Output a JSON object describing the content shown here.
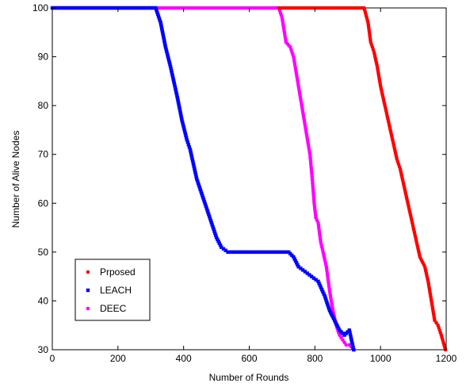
{
  "chart_data": {
    "type": "scatter",
    "title": "",
    "xlabel": "Number of Rounds",
    "ylabel": "Number of Alive Nodes",
    "xlim": [
      0,
      1200
    ],
    "ylim": [
      30,
      100
    ],
    "xticks": [
      0,
      200,
      400,
      600,
      800,
      1000,
      1200
    ],
    "yticks": [
      30,
      40,
      50,
      60,
      70,
      80,
      90,
      100
    ],
    "grid": false,
    "legend": "bottom-left",
    "series": [
      {
        "name": "Prposed",
        "color": "#ff0000",
        "marker": "circle",
        "points": [
          [
            690,
            100
          ],
          [
            950,
            100
          ],
          [
            962,
            97
          ],
          [
            970,
            93
          ],
          [
            980,
            91
          ],
          [
            990,
            88
          ],
          [
            1000,
            84
          ],
          [
            1010,
            81
          ],
          [
            1020,
            78
          ],
          [
            1030,
            75
          ],
          [
            1040,
            72
          ],
          [
            1050,
            69
          ],
          [
            1060,
            67
          ],
          [
            1070,
            64
          ],
          [
            1080,
            61
          ],
          [
            1090,
            58
          ],
          [
            1100,
            55
          ],
          [
            1110,
            52
          ],
          [
            1120,
            49
          ],
          [
            1135,
            47
          ],
          [
            1145,
            44
          ],
          [
            1155,
            40
          ],
          [
            1165,
            36
          ],
          [
            1175,
            35
          ],
          [
            1185,
            33
          ],
          [
            1198,
            30
          ]
        ]
      },
      {
        "name": "LEACH",
        "color": "#0000ff",
        "marker": "square",
        "points": [
          [
            0,
            100
          ],
          [
            315,
            100
          ],
          [
            330,
            97
          ],
          [
            345,
            92
          ],
          [
            360,
            88
          ],
          [
            380,
            82
          ],
          [
            395,
            77
          ],
          [
            410,
            73
          ],
          [
            420,
            71
          ],
          [
            430,
            68
          ],
          [
            440,
            65
          ],
          [
            455,
            62
          ],
          [
            470,
            59
          ],
          [
            485,
            56
          ],
          [
            500,
            53
          ],
          [
            515,
            51
          ],
          [
            535,
            50
          ],
          [
            600,
            50
          ],
          [
            660,
            50
          ],
          [
            720,
            50
          ],
          [
            735,
            49
          ],
          [
            750,
            47
          ],
          [
            770,
            46
          ],
          [
            790,
            45
          ],
          [
            810,
            44
          ],
          [
            830,
            41
          ],
          [
            845,
            38
          ],
          [
            860,
            36
          ],
          [
            875,
            34
          ],
          [
            890,
            33
          ],
          [
            905,
            34
          ],
          [
            918,
            30
          ]
        ]
      },
      {
        "name": "DEEC",
        "color": "#ff00ff",
        "marker": "circle",
        "points": [
          [
            0,
            100
          ],
          [
            690,
            100
          ],
          [
            700,
            98
          ],
          [
            712,
            93
          ],
          [
            725,
            92
          ],
          [
            735,
            90
          ],
          [
            745,
            86
          ],
          [
            755,
            82
          ],
          [
            765,
            78
          ],
          [
            775,
            74
          ],
          [
            785,
            70
          ],
          [
            792,
            65
          ],
          [
            798,
            60
          ],
          [
            803,
            57
          ],
          [
            810,
            56
          ],
          [
            818,
            52
          ],
          [
            825,
            50
          ],
          [
            835,
            47
          ],
          [
            845,
            42
          ],
          [
            855,
            38
          ],
          [
            865,
            35
          ],
          [
            875,
            33
          ],
          [
            885,
            32
          ],
          [
            895,
            31
          ],
          [
            905,
            31
          ],
          [
            920,
            30
          ]
        ]
      }
    ]
  }
}
